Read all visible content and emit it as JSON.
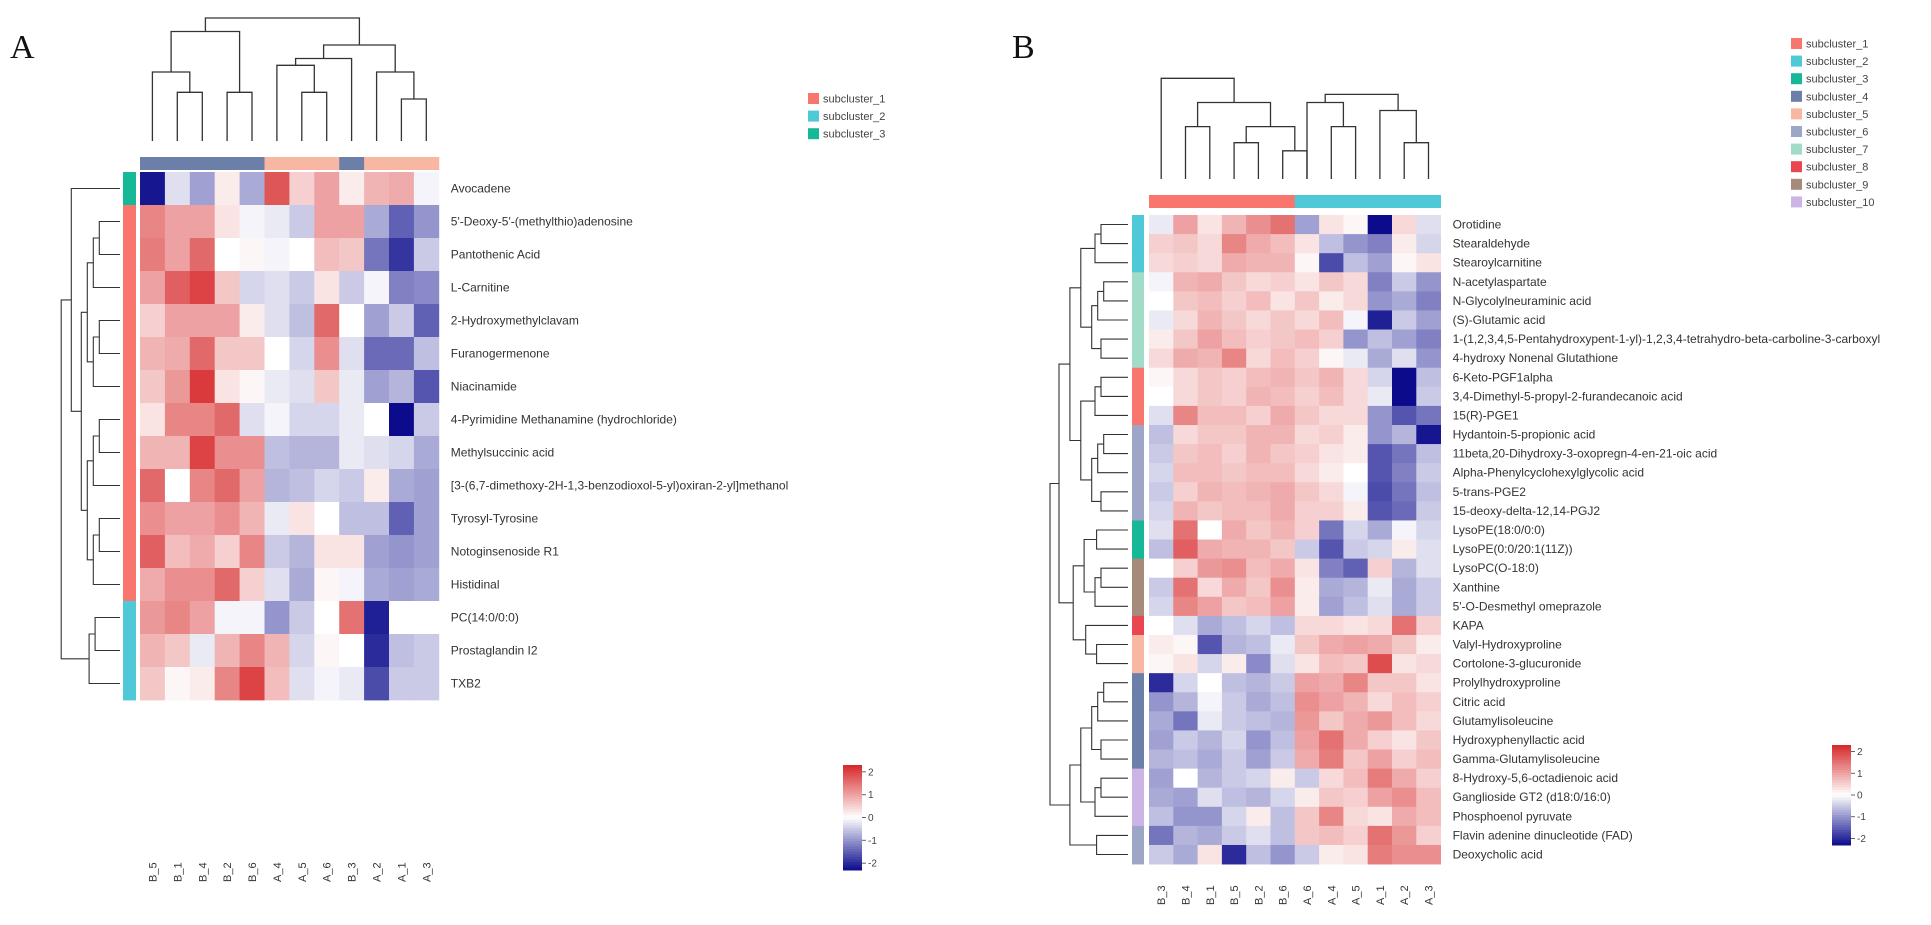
{
  "colors": {
    "low": "#0b0b8c",
    "mid": "#ffffff",
    "high": "#d62728",
    "subclusters": [
      "#f8766d",
      "#4fc8d8",
      "#17b898",
      "#6c7fa8",
      "#f7b7a3",
      "#9ea6c8",
      "#a1dcc8",
      "#e8474f",
      "#a68a7a",
      "#cdb4e6"
    ],
    "column_groups": [
      "#f8766d",
      "#4fc8d8"
    ],
    "colbar_A": [
      "#6c7fa8",
      "#f7b7a3"
    ]
  },
  "chart_data": [
    {
      "type": "heatmap",
      "panel_label": "A",
      "columns": [
        "B_5",
        "B_1",
        "B_4",
        "B_2",
        "B_6",
        "A_4",
        "A_5",
        "A_6",
        "B_3",
        "A_2",
        "A_1",
        "A_3"
      ],
      "column_group_colors": [
        0,
        0,
        0,
        0,
        0,
        1,
        1,
        1,
        0,
        1,
        1,
        1
      ],
      "rows": [
        "Avocadene",
        "5'-Deoxy-5'-(methylthio)adenosine",
        "Pantothenic Acid",
        "L-Carnitine",
        "2-Hydroxymethylclavam",
        "Furanogermenone",
        "Niacinamide",
        "4-Pyrimidine Methanamine (hydrochloride)",
        "Methylsuccinic acid",
        "[3-(6,7-dimethoxy-2H-1,3-benzodioxol-5-yl)oxiran-2-yl]methanol",
        "Tyrosyl-Tyrosine",
        "Notoginsenoside R1",
        "Histidinal",
        "PC(14:0/0:0)",
        "Prostaglandin I2",
        "TXB2"
      ],
      "row_subclusters": [
        3,
        1,
        1,
        1,
        1,
        1,
        1,
        1,
        1,
        1,
        1,
        1,
        1,
        2,
        2,
        2
      ],
      "values": [
        [
          -2.2,
          -0.3,
          -0.9,
          0.2,
          -0.8,
          1.8,
          0.5,
          1.0,
          0.2,
          0.8,
          0.9,
          -0.1
        ],
        [
          1.3,
          1.0,
          1.0,
          0.3,
          -0.1,
          -0.2,
          -0.5,
          1.0,
          1.0,
          -0.8,
          -1.5,
          -1.0
        ],
        [
          1.4,
          1.0,
          1.6,
          0.0,
          0.1,
          -0.1,
          0.0,
          0.7,
          0.6,
          -1.3,
          -1.9,
          -0.5
        ],
        [
          1.0,
          1.7,
          2.0,
          0.6,
          -0.4,
          -0.3,
          -0.5,
          0.3,
          -0.5,
          -0.1,
          -1.2,
          -1.1
        ],
        [
          0.5,
          1.0,
          1.0,
          1.0,
          0.2,
          -0.3,
          -0.6,
          1.6,
          0.0,
          -0.9,
          -0.5,
          -1.5
        ],
        [
          0.8,
          0.9,
          1.6,
          0.6,
          0.6,
          0.0,
          -0.4,
          1.2,
          -0.3,
          -1.4,
          -1.4,
          -0.6
        ],
        [
          0.6,
          1.1,
          2.1,
          0.3,
          0.1,
          -0.2,
          -0.3,
          0.6,
          -0.2,
          -0.9,
          -0.7,
          -1.6
        ],
        [
          0.3,
          1.3,
          1.3,
          1.6,
          -0.3,
          -0.1,
          -0.4,
          -0.4,
          -0.2,
          0.0,
          -2.4,
          -0.5
        ],
        [
          0.8,
          0.8,
          2.0,
          1.2,
          1.2,
          -0.6,
          -0.7,
          -0.7,
          -0.2,
          -0.3,
          -0.4,
          -0.8
        ],
        [
          1.6,
          0.0,
          1.3,
          1.6,
          1.0,
          -0.7,
          -0.6,
          -0.4,
          -0.5,
          0.2,
          -0.8,
          -0.9
        ],
        [
          1.2,
          1.0,
          1.0,
          1.2,
          0.8,
          -0.2,
          0.3,
          0.0,
          -0.6,
          -0.6,
          -1.5,
          -0.9
        ],
        [
          1.7,
          0.7,
          0.9,
          0.5,
          1.3,
          -0.5,
          -0.7,
          0.3,
          0.3,
          -0.9,
          -1.0,
          -0.9
        ],
        [
          0.9,
          1.2,
          1.2,
          1.6,
          0.5,
          -0.3,
          -0.8,
          0.1,
          -0.1,
          -0.8,
          -0.9,
          -0.8
        ],
        [
          1.1,
          1.3,
          1.0,
          -0.1,
          -0.1,
          -1.0,
          -0.5,
          0.0,
          1.5,
          -2.1,
          0.0,
          0.0
        ],
        [
          0.8,
          0.6,
          -0.2,
          0.8,
          1.3,
          0.8,
          -0.4,
          0.1,
          0.0,
          -2.0,
          -0.6,
          -0.5
        ],
        [
          0.6,
          0.1,
          0.2,
          1.3,
          2.0,
          0.7,
          -0.3,
          -0.1,
          -0.2,
          -1.7,
          -0.5,
          -0.5
        ]
      ],
      "legend": [
        "subcluster_1",
        "subcluster_2",
        "subcluster_3"
      ],
      "color_scale": {
        "ticks": [
          "2",
          "1",
          "0",
          "-1",
          "-2"
        ],
        "range": [
          -2.3,
          2.3
        ]
      }
    },
    {
      "type": "heatmap",
      "panel_label": "B",
      "columns": [
        "B_3",
        "B_4",
        "B_1",
        "B_5",
        "B_2",
        "B_6",
        "A_6",
        "A_4",
        "A_5",
        "A_1",
        "A_2",
        "A_3"
      ],
      "column_group_colors": [
        0,
        0,
        0,
        0,
        0,
        0,
        1,
        1,
        1,
        1,
        1,
        1
      ],
      "rows": [
        "Orotidine",
        "Stearaldehyde",
        "Stearoylcarnitine",
        "N-acetylaspartate",
        "N-Glycolylneuraminic acid",
        "(S)-Glutamic acid",
        "1-(1,2,3,4,5-Pentahydroxypent-1-yl)-1,2,3,4-tetrahydro-beta-carboline-3-carboxyl",
        "4-hydroxy Nonenal Glutathione",
        "6-Keto-PGF1alpha",
        "3,4-Dimethyl-5-propyl-2-furandecanoic acid",
        "15(R)-PGE1",
        "Hydantoin-5-propionic acid",
        "11beta,20-Dihydroxy-3-oxopregn-4-en-21-oic acid",
        "Alpha-Phenylcyclohexylglycolic acid",
        "5-trans-PGE2",
        "15-deoxy-delta-12,14-PGJ2",
        "LysoPE(18:0/0:0)",
        "LysoPE(0:0/20:1(11Z))",
        "LysoPC(O-18:0)",
        "Xanthine",
        "5'-O-Desmethyl omeprazole",
        "KAPA",
        "Valyl-Hydroxyproline",
        "Cortolone-3-glucuronide",
        "Prolylhydroxyproline",
        "Citric acid",
        "Glutamylisoleucine",
        "Hydroxyphenyllactic acid",
        "Gamma-Glutamylisoleucine",
        "8-Hydroxy-5,6-octadienoic acid",
        "Ganglioside GT2 (d18:0/16:0)",
        "Phosphoenol pyruvate",
        "Flavin adenine dinucleotide (FAD)",
        "Deoxycholic acid"
      ],
      "row_subclusters": [
        2,
        2,
        2,
        7,
        7,
        7,
        7,
        7,
        1,
        1,
        1,
        6,
        6,
        6,
        6,
        6,
        3,
        3,
        9,
        9,
        9,
        8,
        5,
        5,
        4,
        4,
        4,
        4,
        4,
        10,
        10,
        10,
        6,
        6
      ],
      "values": [
        [
          -0.2,
          1.0,
          0.3,
          0.8,
          1.2,
          1.5,
          -0.9,
          0.3,
          0.1,
          -2.3,
          0.4,
          -0.3
        ],
        [
          0.5,
          0.6,
          0.4,
          1.3,
          0.9,
          0.7,
          0.3,
          -0.6,
          -1.0,
          -1.2,
          0.2,
          -0.4
        ],
        [
          0.4,
          0.5,
          0.4,
          0.9,
          0.8,
          0.8,
          0.1,
          -1.7,
          -0.6,
          -0.9,
          0.1,
          0.3
        ],
        [
          -0.1,
          0.8,
          0.9,
          0.6,
          0.4,
          0.5,
          0.3,
          0.6,
          0.4,
          -1.2,
          -0.5,
          -1.0
        ],
        [
          0.0,
          0.6,
          0.7,
          0.5,
          0.7,
          0.3,
          0.6,
          0.2,
          0.4,
          -1.0,
          -0.8,
          -1.2
        ],
        [
          -0.2,
          0.4,
          0.8,
          0.6,
          0.4,
          0.6,
          0.4,
          0.7,
          -0.1,
          -2.1,
          -0.5,
          -0.9
        ],
        [
          0.2,
          0.6,
          1.0,
          0.7,
          0.5,
          0.6,
          0.7,
          0.5,
          -1.0,
          -0.6,
          -0.9,
          -1.2
        ],
        [
          0.4,
          0.9,
          0.8,
          1.3,
          0.4,
          0.7,
          0.5,
          0.1,
          -0.2,
          -0.8,
          -0.3,
          -1.0
        ],
        [
          0.1,
          0.4,
          0.6,
          0.5,
          0.7,
          0.8,
          0.6,
          0.8,
          0.4,
          -0.4,
          -2.4,
          -0.6
        ],
        [
          0.0,
          0.4,
          0.6,
          0.5,
          0.8,
          0.7,
          0.5,
          0.7,
          0.4,
          -0.2,
          -2.3,
          -0.5
        ],
        [
          -0.3,
          1.3,
          0.7,
          0.7,
          0.5,
          0.9,
          0.6,
          0.4,
          0.4,
          -1.0,
          -1.6,
          -1.3
        ],
        [
          -0.6,
          0.4,
          0.6,
          0.6,
          0.8,
          0.8,
          0.4,
          0.5,
          0.2,
          -1.0,
          -0.7,
          -2.2
        ],
        [
          -0.5,
          0.6,
          0.7,
          0.5,
          0.8,
          0.6,
          0.5,
          0.3,
          0.2,
          -1.6,
          -1.3,
          -0.6
        ],
        [
          -0.4,
          0.7,
          0.7,
          0.6,
          0.7,
          0.7,
          0.4,
          0.2,
          0.0,
          -1.6,
          -1.2,
          -0.5
        ],
        [
          -0.5,
          0.5,
          0.8,
          0.7,
          0.8,
          0.9,
          0.6,
          0.4,
          -0.1,
          -1.7,
          -1.3,
          -0.6
        ],
        [
          -0.4,
          0.8,
          0.6,
          0.7,
          0.7,
          0.9,
          0.5,
          0.5,
          0.2,
          -1.6,
          -1.4,
          -0.5
        ],
        [
          -0.3,
          1.5,
          0.0,
          0.9,
          0.6,
          0.8,
          0.5,
          -1.3,
          -0.4,
          -0.8,
          -0.1,
          -0.4
        ],
        [
          -0.6,
          1.7,
          0.9,
          0.8,
          0.8,
          0.6,
          -0.5,
          -1.6,
          -0.5,
          -0.4,
          0.2,
          -0.3
        ],
        [
          0.0,
          0.5,
          1.1,
          1.2,
          0.7,
          0.9,
          0.3,
          -1.2,
          -1.5,
          0.5,
          -0.7,
          -0.3
        ],
        [
          -0.5,
          1.5,
          0.4,
          0.9,
          0.6,
          1.2,
          0.2,
          -0.8,
          -0.7,
          -0.2,
          -0.8,
          -0.5
        ],
        [
          -0.4,
          1.3,
          1.0,
          0.6,
          0.7,
          1.0,
          0.2,
          -0.9,
          -0.6,
          -0.3,
          -0.8,
          -0.5
        ],
        [
          0.0,
          -0.3,
          -0.8,
          -0.6,
          -0.4,
          -0.6,
          0.4,
          0.4,
          0.3,
          0.4,
          1.5,
          0.5
        ],
        [
          0.2,
          0.1,
          -1.6,
          -0.7,
          -0.6,
          -0.2,
          0.6,
          0.9,
          1.0,
          0.9,
          0.6,
          0.2
        ],
        [
          0.1,
          0.3,
          -0.4,
          0.2,
          -1.1,
          -0.3,
          0.3,
          0.7,
          0.6,
          1.9,
          0.3,
          0.4
        ],
        [
          -2.0,
          -0.4,
          0.0,
          -0.6,
          -0.7,
          -0.5,
          1.0,
          0.9,
          1.3,
          0.6,
          0.6,
          0.3
        ],
        [
          -1.0,
          -0.7,
          -0.1,
          -0.5,
          -0.8,
          -0.6,
          1.2,
          1.0,
          0.8,
          0.4,
          0.7,
          0.5
        ],
        [
          -0.8,
          -1.3,
          -0.2,
          -0.5,
          -0.6,
          -0.7,
          1.1,
          0.6,
          0.9,
          1.1,
          0.7,
          0.4
        ],
        [
          -0.9,
          -0.5,
          -0.7,
          -0.4,
          -1.0,
          -0.6,
          1.0,
          1.5,
          0.9,
          0.5,
          0.3,
          0.6
        ],
        [
          -0.7,
          -0.6,
          -0.8,
          -0.5,
          -0.9,
          -0.5,
          0.9,
          1.4,
          0.6,
          1.0,
          0.5,
          0.7
        ],
        [
          -0.9,
          0.0,
          -0.7,
          -0.5,
          -0.4,
          0.2,
          -0.5,
          0.4,
          0.7,
          1.4,
          0.9,
          0.5
        ],
        [
          -0.8,
          -0.9,
          -0.3,
          -0.6,
          -0.7,
          -0.4,
          0.2,
          0.6,
          0.5,
          1.0,
          1.2,
          0.7
        ],
        [
          -0.6,
          -1.0,
          -1.0,
          -0.4,
          0.2,
          -0.6,
          0.6,
          1.3,
          0.4,
          0.3,
          0.9,
          0.7
        ],
        [
          -1.3,
          -0.7,
          -0.8,
          -0.5,
          -0.3,
          -0.6,
          0.6,
          0.7,
          0.5,
          1.5,
          1.1,
          0.5
        ],
        [
          -0.5,
          -0.8,
          0.3,
          -2.0,
          -0.6,
          -1.0,
          -0.5,
          0.2,
          0.3,
          1.4,
          1.2,
          1.2
        ]
      ],
      "legend": [
        "subcluster_1",
        "subcluster_2",
        "subcluster_3",
        "subcluster_4",
        "subcluster_5",
        "subcluster_6",
        "subcluster_7",
        "subcluster_8",
        "subcluster_9",
        "subcluster_10"
      ],
      "color_scale": {
        "ticks": [
          "2",
          "1",
          "0",
          "-1",
          "-2"
        ],
        "range": [
          -2.3,
          2.3
        ]
      }
    }
  ]
}
